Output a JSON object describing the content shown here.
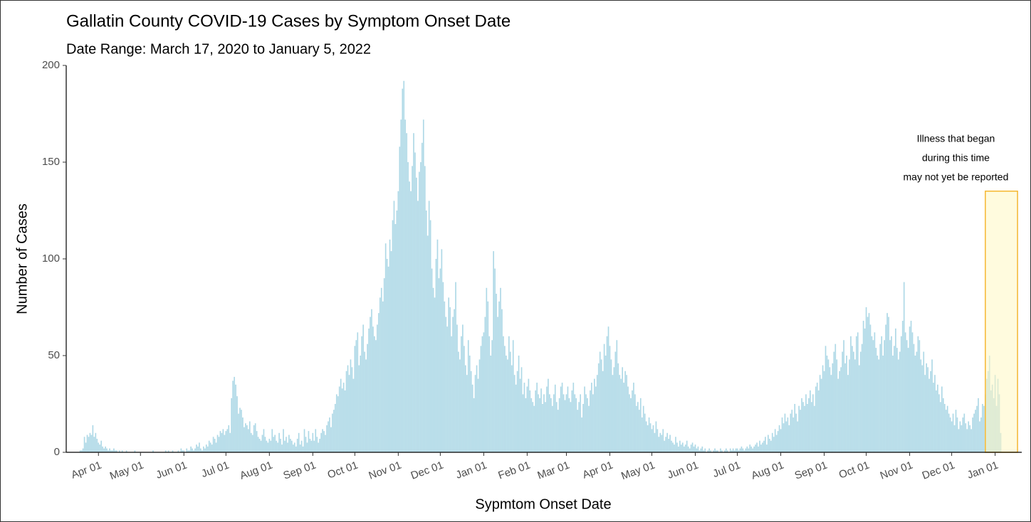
{
  "chart_data": {
    "type": "bar",
    "title": "Gallatin County COVID-19 Cases by Symptom Onset Date",
    "subtitle": "Date Range: March 17, 2020 to January 5, 2022",
    "x_label": "Sypmtom Onset Date",
    "y_label": "Number of Cases",
    "color": "#add8e6",
    "xlim": [
      -8,
      674
    ],
    "ylim": [
      0,
      200
    ],
    "yticks": [
      0,
      50,
      100,
      150,
      200
    ],
    "xticks": [
      {
        "value": 15,
        "label": "Apr 01"
      },
      {
        "value": 45,
        "label": "May 01"
      },
      {
        "value": 76,
        "label": "Jun 01"
      },
      {
        "value": 106,
        "label": "Jul 01"
      },
      {
        "value": 137,
        "label": "Aug 01"
      },
      {
        "value": 168,
        "label": "Sep 01"
      },
      {
        "value": 198,
        "label": "Oct 01"
      },
      {
        "value": 229,
        "label": "Nov 01"
      },
      {
        "value": 259,
        "label": "Dec 01"
      },
      {
        "value": 290,
        "label": "Jan 01"
      },
      {
        "value": 321,
        "label": "Feb 01"
      },
      {
        "value": 349,
        "label": "Mar 01"
      },
      {
        "value": 380,
        "label": "Apr 01"
      },
      {
        "value": 410,
        "label": "May 01"
      },
      {
        "value": 441,
        "label": "Jun 01"
      },
      {
        "value": 471,
        "label": "Jul 01"
      },
      {
        "value": 502,
        "label": "Aug 01"
      },
      {
        "value": 533,
        "label": "Sep 01"
      },
      {
        "value": 563,
        "label": "Oct 01"
      },
      {
        "value": 594,
        "label": "Nov 01"
      },
      {
        "value": 624,
        "label": "Dec 01"
      },
      {
        "value": 655,
        "label": "Jan 01"
      }
    ],
    "highlight": {
      "xlim": [
        648,
        671
      ],
      "ylim": [
        0,
        135
      ],
      "fill": "#fff7c2",
      "stroke": "#f5b731",
      "text": [
        "Illness that began",
        "during this time",
        "may not yet be reported"
      ]
    },
    "values": [
      0,
      0,
      1,
      1,
      2,
      8,
      5,
      9,
      8,
      10,
      9,
      14,
      8,
      10,
      7,
      5,
      4,
      6,
      3,
      2,
      3,
      2,
      1,
      2,
      1,
      1,
      2,
      1,
      1,
      0,
      1,
      0,
      1,
      0,
      0,
      1,
      0,
      0,
      0,
      0,
      0,
      1,
      0,
      0,
      0,
      0,
      0,
      0,
      0,
      0,
      0,
      0,
      0,
      0,
      1,
      0,
      0,
      0,
      0,
      0,
      0,
      0,
      0,
      1,
      0,
      1,
      0,
      0,
      1,
      0,
      0,
      0,
      1,
      0,
      2,
      1,
      1,
      0,
      2,
      1,
      1,
      3,
      2,
      1,
      2,
      4,
      3,
      5,
      2,
      1,
      3,
      2,
      4,
      3,
      6,
      5,
      4,
      8,
      7,
      5,
      9,
      8,
      11,
      10,
      12,
      9,
      11,
      12,
      14,
      10,
      28,
      37,
      39,
      35,
      29,
      20,
      23,
      22,
      18,
      13,
      15,
      14,
      12,
      16,
      10,
      9,
      14,
      15,
      11,
      8,
      7,
      6,
      9,
      12,
      8,
      6,
      5,
      7,
      6,
      12,
      8,
      9,
      6,
      5,
      10,
      7,
      4,
      12,
      6,
      8,
      5,
      9,
      7,
      6,
      4,
      5,
      3,
      7,
      10,
      4,
      6,
      3,
      12,
      8,
      5,
      11,
      7,
      6,
      10,
      6,
      12,
      8,
      5,
      7,
      10,
      12,
      11,
      9,
      14,
      16,
      18,
      13,
      20,
      22,
      25,
      30,
      29,
      34,
      38,
      33,
      36,
      32,
      42,
      45,
      40,
      48,
      44,
      38,
      55,
      58,
      62,
      45,
      50,
      60,
      66,
      52,
      48,
      56,
      64,
      70,
      74,
      65,
      60,
      58,
      66,
      72,
      80,
      85,
      78,
      90,
      108,
      100,
      96,
      110,
      104,
      120,
      130,
      118,
      125,
      135,
      158,
      172,
      188,
      192,
      172,
      165,
      150,
      140,
      135,
      148,
      165,
      155,
      142,
      130,
      145,
      150,
      160,
      172,
      148,
      125,
      112,
      130,
      120,
      95,
      85,
      80,
      100,
      110,
      90,
      95,
      105,
      88,
      78,
      70,
      65,
      80,
      75,
      60,
      70,
      74,
      88,
      66,
      52,
      48,
      60,
      66,
      55,
      45,
      40,
      58,
      50,
      42,
      35,
      28,
      40,
      45,
      38,
      48,
      55,
      60,
      62,
      70,
      85,
      78,
      60,
      50,
      58,
      104,
      95,
      82,
      70,
      78,
      85,
      74,
      60,
      55,
      50,
      48,
      60,
      52,
      45,
      58,
      40,
      35,
      42,
      50,
      38,
      44,
      30,
      36,
      28,
      34,
      38,
      32,
      28,
      26,
      24,
      32,
      36,
      30,
      28,
      33,
      25,
      30,
      26,
      34,
      38,
      30,
      28,
      24,
      30,
      35,
      26,
      22,
      28,
      34,
      36,
      30,
      27,
      30,
      34,
      28,
      26,
      32,
      36,
      30,
      28,
      22,
      26,
      30,
      18,
      25,
      34,
      30,
      28,
      24,
      32,
      36,
      30,
      38,
      34,
      40,
      46,
      52,
      48,
      42,
      56,
      50,
      60,
      65,
      55,
      48,
      40,
      44,
      52,
      58,
      46,
      40,
      38,
      44,
      36,
      42,
      40,
      34,
      30,
      28,
      32,
      36,
      30,
      24,
      26,
      22,
      28,
      18,
      24,
      20,
      16,
      14,
      18,
      15,
      12,
      14,
      10,
      16,
      12,
      8,
      10,
      9,
      12,
      6,
      8,
      10,
      7,
      9,
      6,
      5,
      4,
      8,
      5,
      3,
      6,
      4,
      5,
      3,
      4,
      6,
      3,
      2,
      4,
      5,
      3,
      4,
      2,
      3,
      1,
      2,
      3,
      1,
      2,
      0,
      1,
      2,
      1,
      0,
      1,
      2,
      1,
      1,
      0,
      2,
      1,
      0,
      1,
      2,
      1,
      0,
      2,
      1,
      2,
      1,
      2,
      2,
      1,
      2,
      3,
      2,
      1,
      2,
      3,
      2,
      4,
      3,
      2,
      3,
      4,
      5,
      3,
      6,
      4,
      5,
      6,
      8,
      4,
      9,
      7,
      6,
      10,
      8,
      12,
      9,
      11,
      14,
      12,
      18,
      15,
      20,
      16,
      18,
      14,
      20,
      22,
      18,
      25,
      20,
      16,
      24,
      22,
      28,
      26,
      24,
      30,
      25,
      28,
      32,
      26,
      30,
      24,
      34,
      36,
      32,
      40,
      38,
      45,
      42,
      55,
      50,
      48,
      44,
      40,
      46,
      52,
      56,
      48,
      38,
      42,
      44,
      52,
      58,
      46,
      50,
      40,
      48,
      60,
      55,
      52,
      48,
      60,
      62,
      45,
      52,
      56,
      68,
      64,
      75,
      70,
      72,
      66,
      60,
      58,
      62,
      54,
      50,
      48,
      56,
      60,
      50,
      58,
      66,
      72,
      70,
      58,
      60,
      50,
      55,
      64,
      54,
      48,
      52,
      60,
      68,
      88,
      62,
      58,
      54,
      65,
      68,
      62,
      56,
      50,
      52,
      60,
      58,
      48,
      45,
      52,
      40,
      46,
      44,
      38,
      42,
      48,
      36,
      40,
      32,
      35,
      30,
      26,
      34,
      28,
      25,
      22,
      24,
      20,
      18,
      16,
      20,
      14,
      22,
      18,
      12,
      16,
      14,
      18,
      20,
      15,
      12,
      16,
      14,
      12,
      18,
      20,
      22,
      24,
      28,
      16,
      18,
      25,
      24,
      30,
      38,
      42,
      50,
      32,
      35,
      28,
      40,
      24,
      38,
      30,
      10
    ]
  }
}
